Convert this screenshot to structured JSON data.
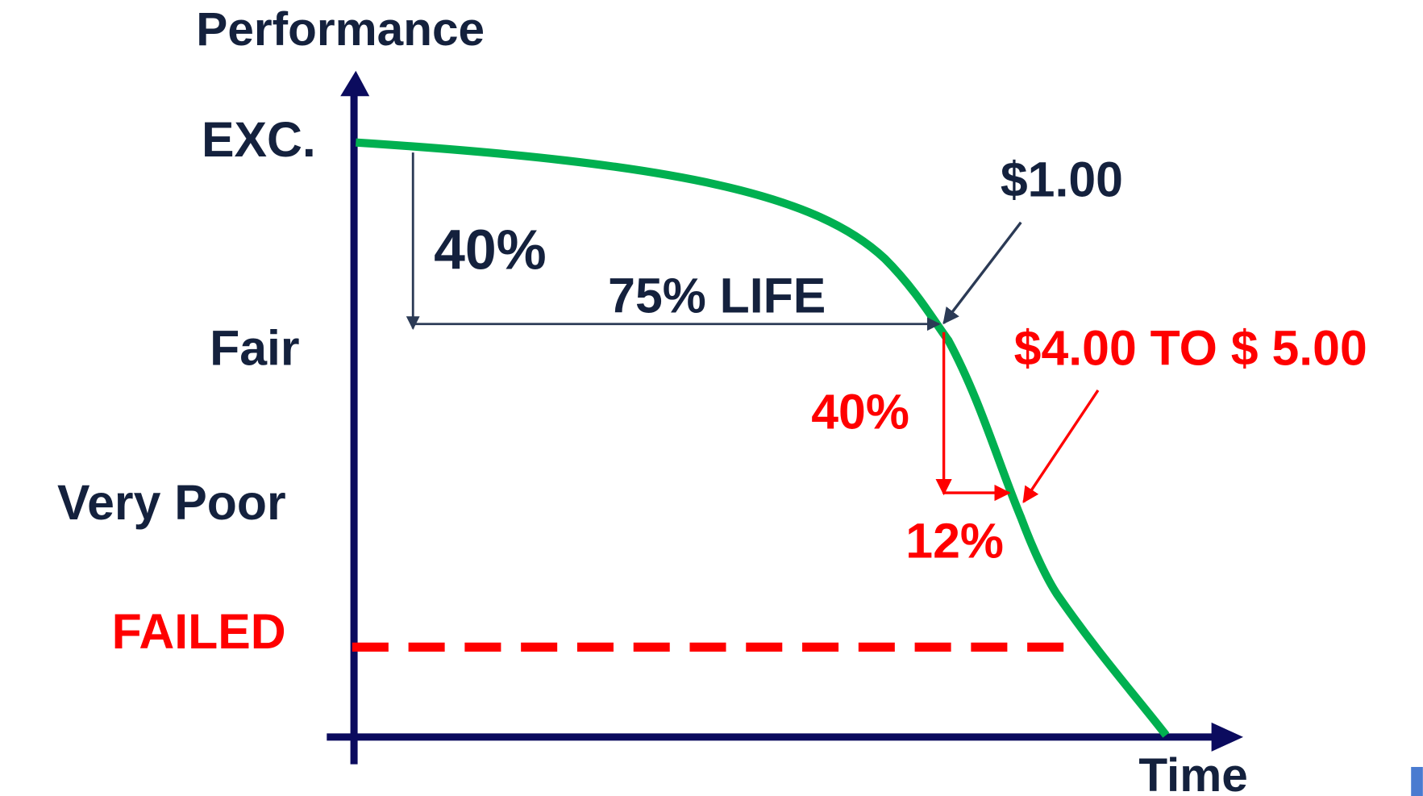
{
  "axis": {
    "title": "Performance",
    "x_label": "Time",
    "levels": [
      "EXC.",
      "Fair",
      "Very Poor",
      "FAILED"
    ]
  },
  "annotations": {
    "first_drop": "40%",
    "life": "75% LIFE",
    "first_cost": "$1.00",
    "second_drop": "40%",
    "second_life": "12%",
    "second_cost": "$4.00 TO $ 5.00"
  }
}
